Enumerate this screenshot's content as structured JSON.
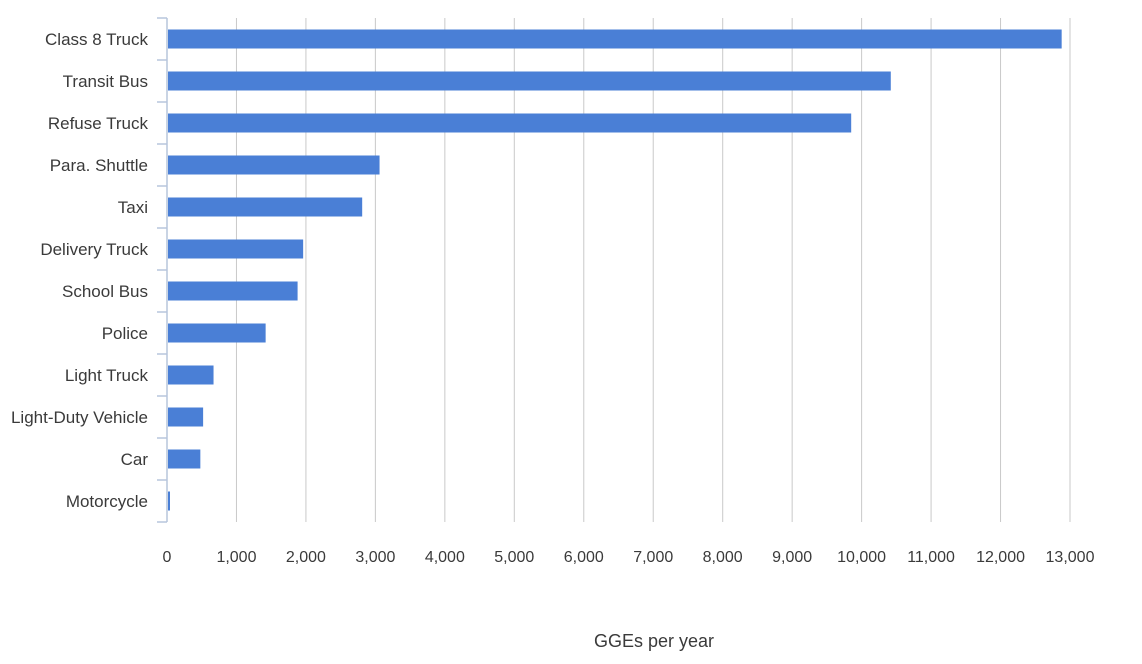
{
  "chart_data": {
    "type": "bar",
    "orientation": "horizontal",
    "title": "",
    "xlabel": "GGEs per year",
    "ylabel": "",
    "categories": [
      "Class 8 Truck",
      "Transit Bus",
      "Refuse Truck",
      "Para. Shuttle",
      "Taxi",
      "Delivery Truck",
      "School Bus",
      "Police",
      "Light Truck",
      "Light-Duty Vehicle",
      "Car",
      "Motorcycle"
    ],
    "values": [
      12880,
      10420,
      9850,
      3060,
      2810,
      1960,
      1880,
      1420,
      670,
      520,
      480,
      40
    ],
    "xlim": [
      0,
      13000
    ],
    "xticks": [
      0,
      1000,
      2000,
      3000,
      4000,
      5000,
      6000,
      7000,
      8000,
      9000,
      10000,
      11000,
      12000,
      13000
    ],
    "xtick_labels": [
      "0",
      "1,000",
      "2,000",
      "3,000",
      "4,000",
      "5,000",
      "6,000",
      "7,000",
      "8,000",
      "9,000",
      "10,000",
      "11,000",
      "12,000",
      "13,000"
    ],
    "grid": "vertical",
    "legend": "none",
    "bar_color": "#4a7fd6"
  }
}
